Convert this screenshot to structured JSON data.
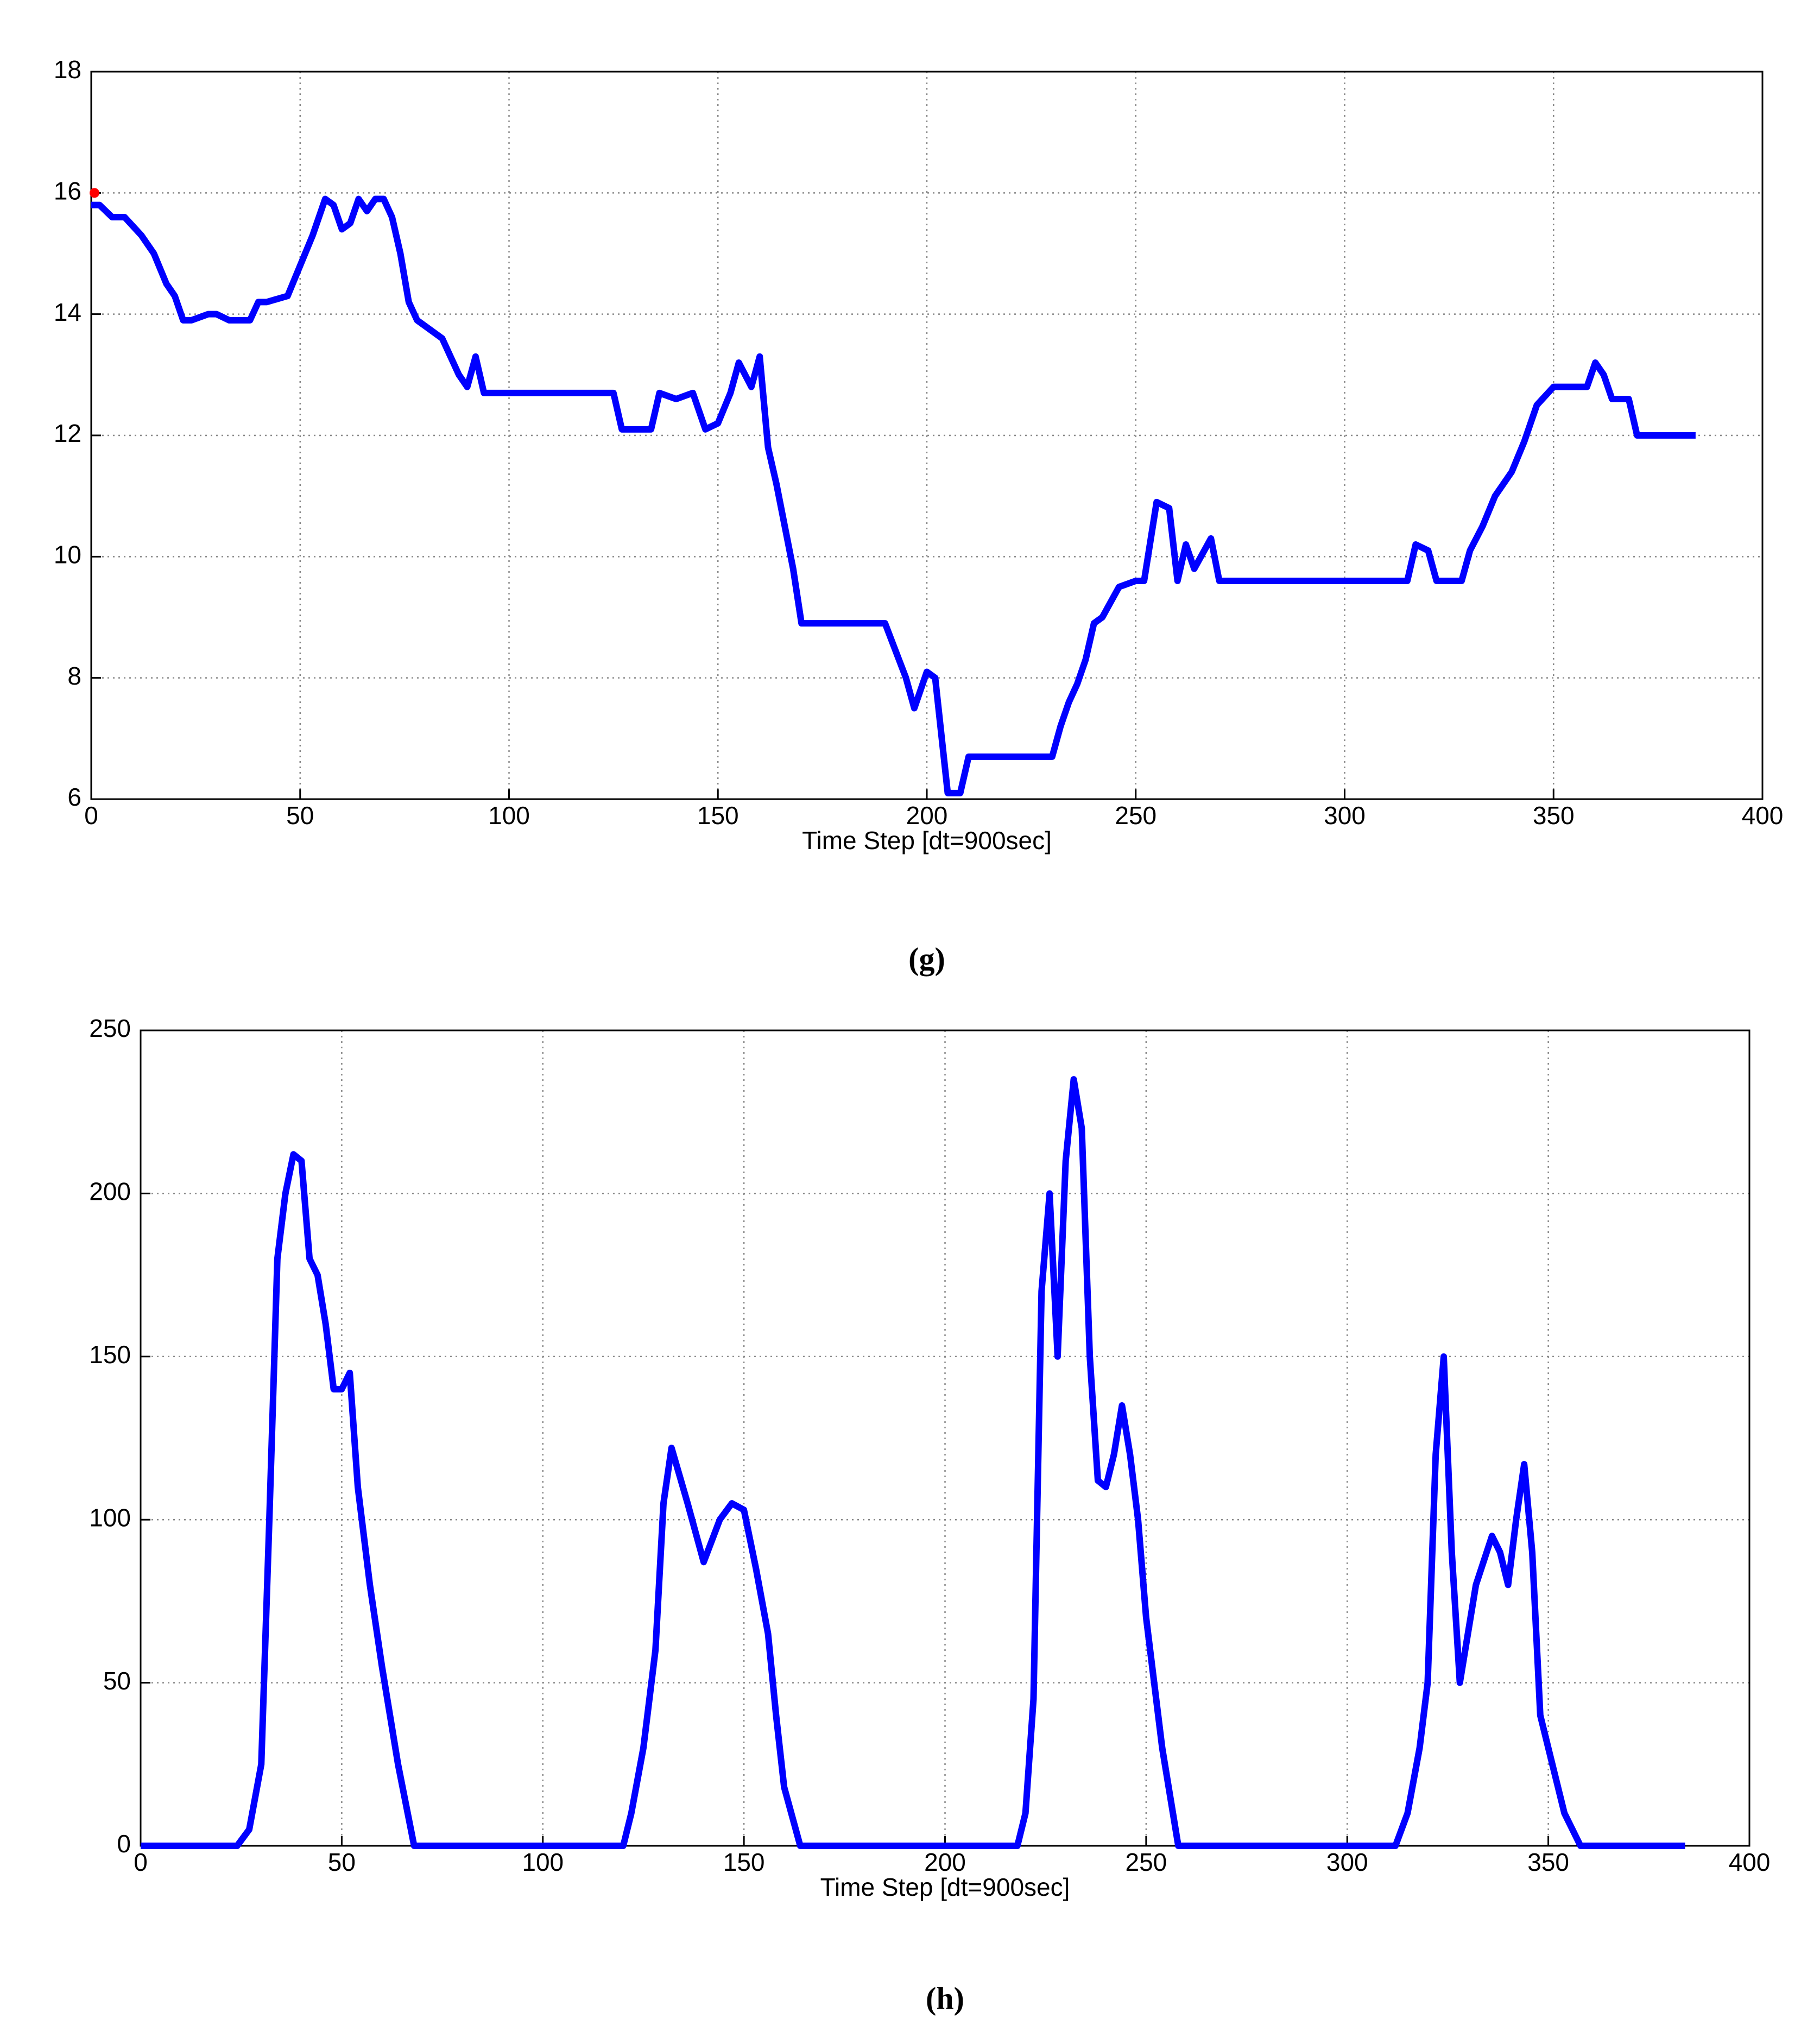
{
  "chart_data": [
    {
      "type": "line",
      "caption": "(g)",
      "xlabel": "Time Step [dt=900sec]",
      "xlim": [
        0,
        400
      ],
      "xticks": [
        0,
        50,
        100,
        150,
        200,
        250,
        300,
        350,
        400
      ],
      "ylim": [
        6,
        18
      ],
      "yticks": [
        6,
        8,
        10,
        12,
        14,
        16,
        18
      ],
      "grid": true,
      "series": [
        {
          "color": "#0000ff",
          "x": [
            0,
            2,
            5,
            8,
            12,
            15,
            18,
            20,
            22,
            24,
            28,
            30,
            33,
            38,
            40,
            42,
            47,
            50,
            53,
            56,
            58,
            60,
            62,
            64,
            66,
            68,
            70,
            72,
            74,
            76,
            78,
            80,
            84,
            86,
            88,
            90,
            92,
            94,
            100,
            125,
            127,
            134,
            136,
            140,
            144,
            147,
            150,
            153,
            155,
            158,
            160,
            162,
            164,
            166,
            168,
            170,
            190,
            195,
            197,
            200,
            202,
            205,
            208,
            210,
            220,
            230,
            232,
            234,
            236,
            238,
            240,
            242,
            246,
            250,
            252,
            255,
            258,
            260,
            262,
            264,
            268,
            270,
            300,
            315,
            317,
            320,
            322,
            328,
            330,
            333,
            336,
            340,
            343,
            346,
            350,
            355,
            358,
            360,
            362,
            364,
            368,
            370,
            384
          ],
          "values": [
            15.8,
            15.8,
            15.6,
            15.6,
            15.3,
            15.0,
            14.5,
            14.3,
            13.9,
            13.9,
            14.0,
            14.0,
            13.9,
            13.9,
            14.2,
            14.2,
            14.3,
            14.8,
            15.3,
            15.9,
            15.8,
            15.4,
            15.5,
            15.9,
            15.7,
            15.9,
            15.9,
            15.6,
            15.0,
            14.2,
            13.9,
            13.8,
            13.6,
            13.3,
            13.0,
            12.8,
            13.3,
            12.7,
            12.7,
            12.7,
            12.1,
            12.1,
            12.7,
            12.6,
            12.7,
            12.1,
            12.2,
            12.7,
            13.2,
            12.8,
            13.3,
            11.8,
            11.2,
            10.5,
            9.8,
            8.9,
            8.9,
            8.0,
            7.5,
            8.1,
            8.0,
            6.1,
            6.1,
            6.7,
            6.7,
            6.7,
            7.2,
            7.6,
            7.9,
            8.3,
            8.9,
            9.0,
            9.5,
            9.6,
            9.6,
            10.9,
            10.8,
            9.6,
            10.2,
            9.8,
            10.3,
            9.6,
            9.6,
            9.6,
            10.2,
            10.1,
            9.6,
            9.6,
            10.1,
            10.5,
            11.0,
            11.4,
            11.9,
            12.5,
            12.8,
            12.8,
            12.8,
            13.2,
            13.0,
            12.6,
            12.6,
            12.0,
            12.0
          ]
        },
        {
          "color": "#ff0000",
          "marker": true,
          "x": [
            0
          ],
          "values": [
            16
          ]
        }
      ]
    },
    {
      "type": "line",
      "caption": "(h)",
      "xlabel": "Time Step [dt=900sec]",
      "xlim": [
        0,
        400
      ],
      "xticks": [
        0,
        50,
        100,
        150,
        200,
        250,
        300,
        350,
        400
      ],
      "ylim": [
        0,
        250
      ],
      "yticks": [
        0,
        50,
        100,
        150,
        200,
        250
      ],
      "grid": true,
      "series": [
        {
          "color": "#0000ff",
          "x": [
            0,
            24,
            27,
            30,
            32,
            34,
            36,
            38,
            40,
            42,
            44,
            46,
            48,
            50,
            52,
            54,
            57,
            60,
            64,
            68,
            70,
            120,
            122,
            125,
            128,
            130,
            132,
            136,
            140,
            144,
            147,
            150,
            153,
            156,
            158,
            160,
            164,
            166,
            215,
            218,
            220,
            222,
            224,
            226,
            228,
            230,
            232,
            234,
            236,
            238,
            240,
            242,
            244,
            246,
            248,
            250,
            254,
            258,
            261,
            263,
            312,
            315,
            318,
            320,
            322,
            324,
            326,
            328,
            332,
            336,
            338,
            340,
            342,
            344,
            346,
            348,
            350,
            354,
            358,
            360,
            384
          ],
          "values": [
            0,
            0,
            5,
            25,
            100,
            180,
            200,
            212,
            210,
            180,
            175,
            160,
            140,
            140,
            145,
            110,
            80,
            55,
            25,
            0,
            0,
            0,
            10,
            30,
            60,
            105,
            122,
            105,
            87,
            100,
            105,
            103,
            85,
            65,
            40,
            18,
            0,
            0,
            0,
            0,
            10,
            45,
            170,
            200,
            150,
            210,
            235,
            220,
            150,
            112,
            110,
            120,
            135,
            120,
            100,
            70,
            30,
            0,
            0,
            0,
            0,
            10,
            30,
            50,
            120,
            150,
            90,
            50,
            80,
            95,
            90,
            80,
            100,
            117,
            90,
            40,
            30,
            10,
            0,
            0,
            0
          ]
        }
      ]
    }
  ]
}
